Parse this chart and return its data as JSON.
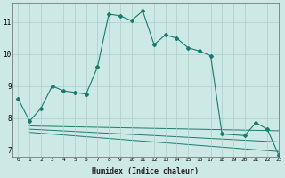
{
  "xlabel": "Humidex (Indice chaleur)",
  "ylabel": "",
  "background_color": "#cce9e5",
  "grid_color": "#b0ccc9",
  "line_color": "#1a7a6e",
  "xlim": [
    -0.5,
    23
  ],
  "ylim": [
    6.8,
    11.6
  ],
  "xticks": [
    0,
    1,
    2,
    3,
    4,
    5,
    6,
    7,
    8,
    9,
    10,
    11,
    12,
    13,
    14,
    15,
    16,
    17,
    18,
    19,
    20,
    21,
    22,
    23
  ],
  "yticks": [
    7,
    8,
    9,
    10,
    11
  ],
  "main_x": [
    0,
    1,
    2,
    3,
    4,
    5,
    6,
    7,
    8,
    9,
    10,
    11,
    12,
    13,
    14,
    15,
    16,
    17,
    18,
    20,
    21,
    22,
    23
  ],
  "main_y": [
    8.6,
    7.9,
    8.3,
    9.0,
    8.85,
    8.8,
    8.75,
    9.6,
    11.25,
    11.2,
    11.05,
    11.35,
    10.3,
    10.6,
    10.5,
    10.2,
    10.1,
    9.95,
    7.5,
    7.45,
    7.85,
    7.65,
    6.85
  ],
  "line2_x": [
    1,
    23
  ],
  "line2_y": [
    7.75,
    7.6
  ],
  "line3_x": [
    1,
    23
  ],
  "line3_y": [
    7.65,
    7.25
  ],
  "line4_x": [
    1,
    23
  ],
  "line4_y": [
    7.55,
    6.95
  ]
}
